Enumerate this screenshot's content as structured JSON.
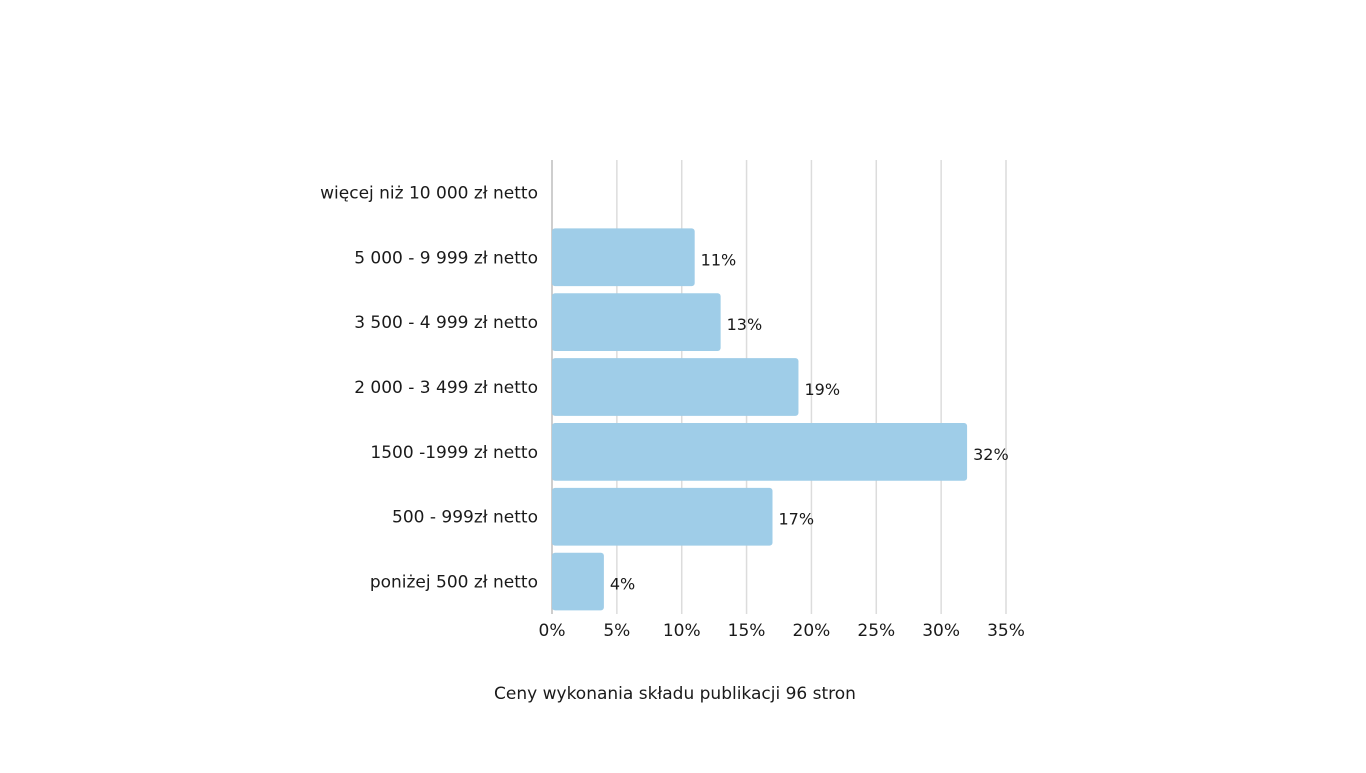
{
  "chart_data": {
    "type": "bar",
    "orientation": "horizontal",
    "title": "Ceny wykonania składu publikacji 96 stron",
    "xlabel": "",
    "ylabel": "",
    "categories": [
      "więcej niż 10 000 zł netto",
      "5 000 - 9 999 zł netto",
      "3 500 - 4 999 zł netto",
      "2 000 - 3 499 zł netto",
      "1500 -1999 zł netto",
      "500 - 999zł netto",
      "poniżej 500 zł netto"
    ],
    "values": [
      0,
      11,
      13,
      19,
      32,
      17,
      4
    ],
    "value_labels": [
      "",
      "11%",
      "13%",
      "19%",
      "32%",
      "17%",
      "4%"
    ],
    "xlim": [
      0,
      35
    ],
    "x_ticks": [
      0,
      5,
      10,
      15,
      20,
      25,
      30,
      35
    ],
    "x_tick_labels": [
      "0%",
      "5%",
      "10%",
      "15%",
      "20%",
      "25%",
      "30%",
      "35%"
    ],
    "grid": true,
    "legend": "none",
    "bar_color": "#9fcde8"
  }
}
